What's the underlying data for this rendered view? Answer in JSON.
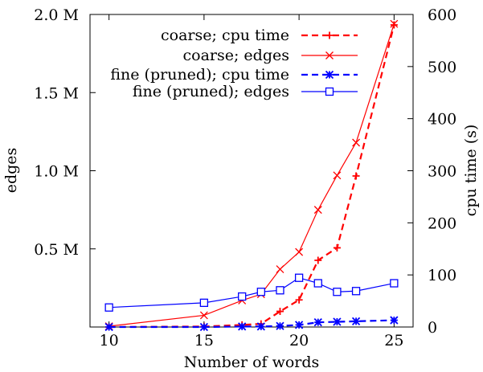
{
  "chart_data": {
    "type": "line",
    "xlabel": "Number of words",
    "ylabel_left": "edges",
    "ylabel_right": "cpu time (s)",
    "xlim": [
      9,
      26
    ],
    "ylim_left": [
      0,
      2000000
    ],
    "ylim_right": [
      0,
      600
    ],
    "x_ticks": [
      10,
      15,
      20,
      25
    ],
    "y_left_ticks": [
      {
        "value": 500000,
        "label": "0.5 M"
      },
      {
        "value": 1000000,
        "label": "1.0 M"
      },
      {
        "value": 1500000,
        "label": "1.5 M"
      },
      {
        "value": 2000000,
        "label": "2.0 M"
      }
    ],
    "y_right_ticks": [
      {
        "value": 0,
        "label": "0"
      },
      {
        "value": 100,
        "label": "100"
      },
      {
        "value": 200,
        "label": "200"
      },
      {
        "value": 300,
        "label": "300"
      },
      {
        "value": 400,
        "label": "400"
      },
      {
        "value": 500,
        "label": "500"
      },
      {
        "value": 600,
        "label": "600"
      }
    ],
    "grid": false,
    "legend_position": "top-left",
    "series": [
      {
        "name": "coarse; cpu time",
        "axis": "right",
        "color": "#ff0000",
        "dash": true,
        "marker": "plus",
        "x": [
          10,
          15,
          17,
          18,
          19,
          20,
          21,
          22,
          23,
          25
        ],
        "y": [
          0,
          1,
          4,
          6,
          30,
          52,
          128,
          152,
          290,
          580
        ]
      },
      {
        "name": "coarse; edges",
        "axis": "left",
        "color": "#ff0000",
        "dash": false,
        "marker": "cross",
        "x": [
          10,
          15,
          17,
          18,
          19,
          20,
          21,
          22,
          23,
          25
        ],
        "y": [
          5000,
          75000,
          170000,
          210000,
          370000,
          480000,
          750000,
          970000,
          1180000,
          1940000
        ]
      },
      {
        "name": "fine (pruned); cpu time",
        "axis": "right",
        "color": "#0000ff",
        "dash": true,
        "marker": "star",
        "x": [
          10,
          15,
          17,
          18,
          19,
          20,
          21,
          22,
          23,
          25
        ],
        "y": [
          0,
          0,
          1,
          1,
          2,
          4,
          9,
          10,
          11,
          13
        ]
      },
      {
        "name": "fine (pruned); edges",
        "axis": "left",
        "color": "#0000ff",
        "dash": false,
        "marker": "square",
        "x": [
          10,
          15,
          17,
          18,
          19,
          20,
          21,
          22,
          23,
          25
        ],
        "y": [
          125000,
          155000,
          195000,
          225000,
          235000,
          315000,
          280000,
          225000,
          230000,
          280000
        ]
      }
    ]
  }
}
